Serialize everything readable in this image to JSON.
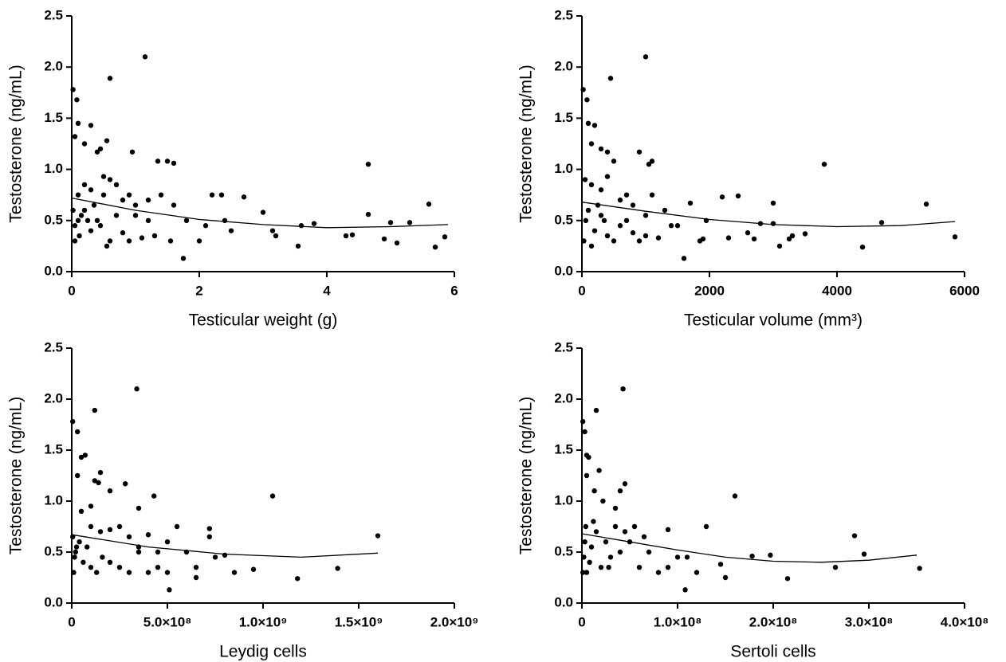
{
  "chart_data": [
    {
      "type": "scatter",
      "x_label": "Testicular weight (g)",
      "y_label": "Testosterone (ng/mL)",
      "xlim": [
        0,
        6
      ],
      "xticks": [
        0,
        2,
        4,
        6
      ],
      "ylim": [
        0,
        2.5
      ],
      "yticks": [
        {
          "value": 0,
          "label": "0.0"
        },
        {
          "value": 0.5,
          "label": "0.5"
        },
        {
          "value": 1,
          "label": "1.0"
        },
        {
          "value": 1.5,
          "label": "1.5"
        },
        {
          "value": 2,
          "label": "2.0"
        },
        {
          "value": 2.5,
          "label": "2.5"
        }
      ],
      "color": "#000000",
      "x": [
        0.02,
        0.08,
        0.1,
        0.05,
        0.2,
        0.3,
        0.4,
        0.45,
        0.55,
        0.6,
        0.95,
        1.15,
        1.35,
        1.5,
        1.6,
        0.5,
        0.6,
        0.7,
        0.2,
        0.1,
        0.3,
        0.5,
        0.8,
        0.9,
        1.0,
        1.2,
        1.4,
        1.6,
        1.8,
        2.1,
        2.2,
        2.35,
        2.7,
        2.4,
        2.5,
        3.0,
        3.15,
        3.2,
        3.55,
        3.6,
        3.8,
        4.3,
        4.4,
        4.65,
        4.65,
        4.9,
        5.0,
        5.1,
        5.3,
        5.6,
        5.7,
        5.85,
        1.75,
        1.55,
        0.05,
        0.1,
        0.15,
        0.2,
        0.3,
        0.4,
        0.6,
        0.7,
        0.8,
        1.0,
        1.1,
        1.3,
        2.0,
        0.02,
        0.05,
        0.12,
        0.25,
        0.35,
        0.45,
        0.55,
        0.9,
        1.2
      ],
      "values": [
        1.78,
        1.68,
        1.45,
        1.32,
        1.25,
        1.43,
        1.17,
        1.2,
        1.28,
        1.89,
        1.17,
        2.1,
        1.08,
        1.08,
        1.06,
        0.93,
        0.9,
        0.85,
        0.85,
        0.75,
        0.8,
        0.75,
        0.7,
        0.75,
        0.65,
        0.7,
        0.75,
        0.65,
        0.5,
        0.45,
        0.75,
        0.75,
        0.73,
        0.5,
        0.4,
        0.58,
        0.4,
        0.35,
        0.25,
        0.45,
        0.47,
        0.35,
        0.36,
        0.56,
        1.05,
        0.32,
        0.48,
        0.28,
        0.48,
        0.66,
        0.24,
        0.34,
        0.13,
        0.3,
        0.3,
        0.5,
        0.55,
        0.6,
        0.4,
        0.5,
        0.3,
        0.55,
        0.38,
        0.55,
        0.33,
        0.35,
        0.3,
        0.6,
        0.45,
        0.35,
        0.5,
        0.65,
        0.45,
        0.25,
        0.3,
        0.5
      ],
      "fit": {
        "x": [
          0,
          1,
          2,
          3,
          4,
          5,
          5.9
        ],
        "values": [
          0.72,
          0.6,
          0.51,
          0.46,
          0.43,
          0.44,
          0.46
        ]
      }
    },
    {
      "type": "scatter",
      "x_label": "Testicular volume (mm³)",
      "y_label": "Testosterone (ng/mL)",
      "xlim": [
        0,
        6000
      ],
      "xticks": [
        0,
        2000,
        4000,
        6000
      ],
      "ylim": [
        0,
        2.5
      ],
      "yticks": [
        {
          "value": 0,
          "label": "0.0"
        },
        {
          "value": 0.5,
          "label": "0.5"
        },
        {
          "value": 1,
          "label": "1.0"
        },
        {
          "value": 1.5,
          "label": "1.5"
        },
        {
          "value": 2,
          "label": "2.0"
        },
        {
          "value": 2.5,
          "label": "2.5"
        }
      ],
      "color": "#000000",
      "x": [
        20,
        80,
        100,
        200,
        150,
        300,
        400,
        450,
        500,
        900,
        1000,
        1100,
        1050,
        3800,
        50,
        150,
        300,
        400,
        600,
        700,
        800,
        1000,
        1100,
        1300,
        1500,
        1600,
        1700,
        1850,
        1900,
        1950,
        2200,
        2300,
        2450,
        2600,
        2700,
        2800,
        3000,
        3000,
        3100,
        3250,
        3300,
        3500,
        4400,
        4700,
        5400,
        5850,
        30,
        60,
        100,
        200,
        300,
        400,
        500,
        600,
        700,
        800,
        900,
        1000,
        1200,
        1400,
        250,
        350,
        150
      ],
      "values": [
        1.78,
        1.68,
        1.45,
        1.43,
        1.25,
        1.2,
        1.17,
        1.89,
        1.08,
        1.17,
        2.1,
        1.08,
        1.05,
        1.05,
        0.9,
        0.85,
        0.8,
        0.93,
        0.7,
        0.75,
        0.65,
        0.55,
        0.75,
        0.6,
        0.45,
        0.13,
        0.67,
        0.3,
        0.32,
        0.5,
        0.73,
        0.33,
        0.74,
        0.38,
        0.32,
        0.47,
        0.67,
        0.47,
        0.25,
        0.32,
        0.35,
        0.37,
        0.24,
        0.48,
        0.66,
        0.34,
        0.3,
        0.5,
        0.6,
        0.4,
        0.55,
        0.35,
        0.3,
        0.45,
        0.5,
        0.38,
        0.3,
        0.35,
        0.33,
        0.45,
        0.65,
        0.5,
        0.25
      ],
      "fit": {
        "x": [
          0,
          1000,
          2000,
          3000,
          4000,
          5000,
          5850
        ],
        "values": [
          0.68,
          0.59,
          0.51,
          0.46,
          0.44,
          0.45,
          0.49
        ]
      }
    },
    {
      "type": "scatter",
      "x_label": "Leydig cells",
      "y_label": "Testosterone (ng/mL)",
      "xlim": [
        0,
        2000000000.0
      ],
      "xticks": [
        0,
        {
          "value": 500000000.0,
          "label": "5.0×10⁸"
        },
        {
          "value": 1000000000.0,
          "label": "1.0×10⁹"
        },
        {
          "value": 1500000000.0,
          "label": "1.5×10⁹"
        },
        {
          "value": 2000000000.0,
          "label": "2.0×10⁹"
        }
      ],
      "ylim": [
        0,
        2.5
      ],
      "yticks": [
        {
          "value": 0,
          "label": "0.0"
        },
        {
          "value": 0.5,
          "label": "0.5"
        },
        {
          "value": 1,
          "label": "1.0"
        },
        {
          "value": 1.5,
          "label": "1.5"
        },
        {
          "value": 2,
          "label": "2.0"
        },
        {
          "value": 2.5,
          "label": "2.5"
        }
      ],
      "color": "#000000",
      "x": [
        5000000.0,
        30000000.0,
        70000000.0,
        50000000.0,
        30000000.0,
        120000000.0,
        120000000.0,
        140000000.0,
        150000000.0,
        100000000.0,
        200000000.0,
        280000000.0,
        340000000.0,
        350000000.0,
        430000000.0,
        1050000000.0,
        50000000.0,
        100000000.0,
        150000000.0,
        200000000.0,
        250000000.0,
        300000000.0,
        350000000.0,
        400000000.0,
        450000000.0,
        500000000.0,
        550000000.0,
        600000000.0,
        650000000.0,
        650000000.0,
        720000000.0,
        720000000.0,
        750000000.0,
        800000000.0,
        850000000.0,
        950000000.0,
        510000000.0,
        1180000000.0,
        1390000000.0,
        1600000000.0,
        10000000.0,
        20000000.0,
        40000000.0,
        60000000.0,
        80000000.0,
        100000000.0,
        130000000.0,
        160000000.0,
        200000000.0,
        250000000.0,
        300000000.0,
        350000000.0,
        400000000.0,
        450000000.0,
        500000000.0,
        5000000.0,
        15000000.0,
        25000000.0
      ],
      "values": [
        1.78,
        1.68,
        1.45,
        1.43,
        1.25,
        1.89,
        1.2,
        1.18,
        1.28,
        0.95,
        1.1,
        1.17,
        2.1,
        0.93,
        1.05,
        1.05,
        0.9,
        0.75,
        0.7,
        0.72,
        0.75,
        0.65,
        0.55,
        0.67,
        0.5,
        0.6,
        0.75,
        0.5,
        0.35,
        0.25,
        0.73,
        0.65,
        0.45,
        0.47,
        0.3,
        0.33,
        0.13,
        0.24,
        0.34,
        0.66,
        0.3,
        0.5,
        0.6,
        0.4,
        0.55,
        0.35,
        0.3,
        0.45,
        0.4,
        0.35,
        0.3,
        0.5,
        0.3,
        0.35,
        0.3,
        0.65,
        0.45,
        0.55
      ],
      "fit": {
        "x": [
          0,
          400000000.0,
          800000000.0,
          1200000000.0,
          1600000000.0
        ],
        "values": [
          0.67,
          0.55,
          0.48,
          0.45,
          0.49
        ]
      }
    },
    {
      "type": "scatter",
      "x_label": "Sertoli cells",
      "y_label": "Testosterone (ng/mL)",
      "xlim": [
        0,
        400000000.0
      ],
      "xticks": [
        0,
        {
          "value": 100000000.0,
          "label": "1.0×10⁸"
        },
        {
          "value": 200000000.0,
          "label": "2.0×10⁸"
        },
        {
          "value": 300000000.0,
          "label": "3.0×10⁸"
        },
        {
          "value": 400000000.0,
          "label": "4.0×10⁸"
        }
      ],
      "ylim": [
        0,
        2.5
      ],
      "yticks": [
        {
          "value": 0,
          "label": "0.0"
        },
        {
          "value": 0.5,
          "label": "0.5"
        },
        {
          "value": 1,
          "label": "1.0"
        },
        {
          "value": 1.5,
          "label": "1.5"
        },
        {
          "value": 2,
          "label": "2.0"
        },
        {
          "value": 2.5,
          "label": "2.5"
        }
      ],
      "color": "#000000",
      "x": [
        1000000.0,
        3000000.0,
        5000000.0,
        7000000.0,
        5000000.0,
        15000000.0,
        13000000.0,
        18000000.0,
        22000000.0,
        40000000.0,
        43000000.0,
        45000000.0,
        35000000.0,
        160000000.0,
        130000000.0,
        285000000.0,
        295000000.0,
        265000000.0,
        353000000.0,
        215000000.0,
        197000000.0,
        178000000.0,
        108000000.0,
        145000000.0,
        150000000.0,
        120000000.0,
        100000000.0,
        90000000.0,
        80000000.0,
        70000000.0,
        65000000.0,
        55000000.0,
        50000000.0,
        45000000.0,
        40000000.0,
        35000000.0,
        30000000.0,
        25000000.0,
        20000000.0,
        15000000.0,
        10000000.0,
        8000000.0,
        5000000.0,
        3000000.0,
        2000000.0,
        1000000.0,
        4000000.0,
        12000000.0,
        28000000.0,
        60000000.0,
        90000000.0,
        110000000.0
      ],
      "values": [
        1.78,
        1.68,
        1.45,
        1.43,
        1.25,
        1.89,
        1.1,
        1.3,
        1.0,
        1.1,
        2.1,
        1.17,
        0.93,
        1.05,
        0.75,
        0.66,
        0.48,
        0.35,
        0.34,
        0.24,
        0.47,
        0.46,
        0.13,
        0.38,
        0.25,
        0.3,
        0.45,
        0.35,
        0.3,
        0.5,
        0.65,
        0.75,
        0.6,
        0.7,
        0.5,
        0.75,
        0.45,
        0.6,
        0.35,
        0.7,
        0.55,
        0.4,
        0.3,
        0.6,
        0.45,
        0.3,
        0.75,
        0.8,
        0.35,
        0.35,
        0.72,
        0.45
      ],
      "fit": {
        "x": [
          0,
          50000000.0,
          100000000.0,
          150000000.0,
          200000000.0,
          250000000.0,
          300000000.0,
          350000000.0
        ],
        "values": [
          0.68,
          0.6,
          0.52,
          0.45,
          0.41,
          0.4,
          0.42,
          0.47
        ]
      }
    }
  ]
}
